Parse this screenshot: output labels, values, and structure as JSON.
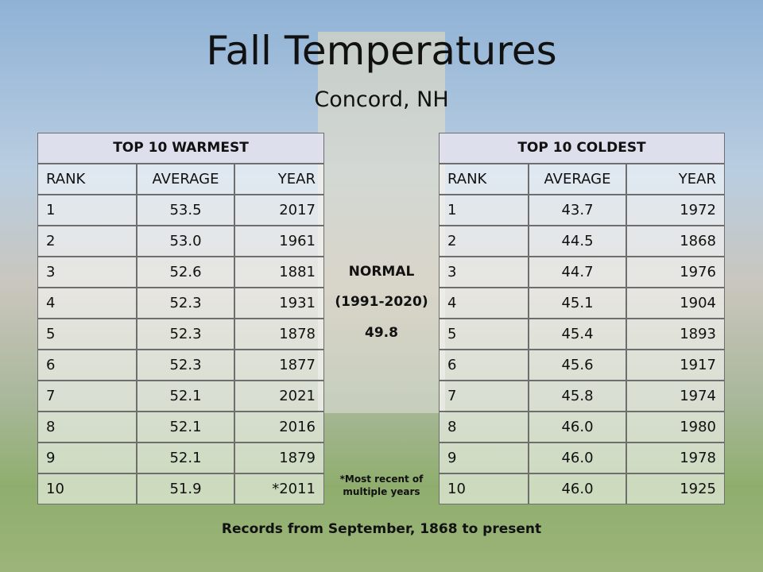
{
  "title": "Fall Temperatures",
  "subtitle": "Concord, NH",
  "warmest": {
    "title": "TOP 10 WARMEST",
    "columns": [
      "RANK",
      "AVERAGE",
      "YEAR"
    ],
    "rows": [
      [
        "1",
        "53.5",
        "2017"
      ],
      [
        "2",
        "53.0",
        "1961"
      ],
      [
        "3",
        "52.6",
        "1881"
      ],
      [
        "4",
        "52.3",
        "1931"
      ],
      [
        "5",
        "52.3",
        "1878"
      ],
      [
        "6",
        "52.3",
        "1877"
      ],
      [
        "7",
        "52.1",
        "2021"
      ],
      [
        "8",
        "52.1",
        "2016"
      ],
      [
        "9",
        "52.1",
        "1879"
      ],
      [
        "10",
        "51.9",
        "*2011"
      ]
    ]
  },
  "coldest": {
    "title": "TOP 10 COLDEST",
    "columns": [
      "RANK",
      "AVERAGE",
      "YEAR"
    ],
    "rows": [
      [
        "1",
        "43.7",
        "1972"
      ],
      [
        "2",
        "44.5",
        "1868"
      ],
      [
        "3",
        "44.7",
        "1976"
      ],
      [
        "4",
        "45.1",
        "1904"
      ],
      [
        "5",
        "45.4",
        "1893"
      ],
      [
        "6",
        "45.6",
        "1917"
      ],
      [
        "7",
        "45.8",
        "1974"
      ],
      [
        "8",
        "46.0",
        "1980"
      ],
      [
        "9",
        "46.0",
        "1978"
      ],
      [
        "10",
        "46.0",
        "1925"
      ]
    ]
  },
  "normal": {
    "label": "NORMAL",
    "period": "(1991-2020)",
    "value": "49.8"
  },
  "footnote": "*Most recent of multiple years",
  "records_note": "Records from September, 1868 to present"
}
